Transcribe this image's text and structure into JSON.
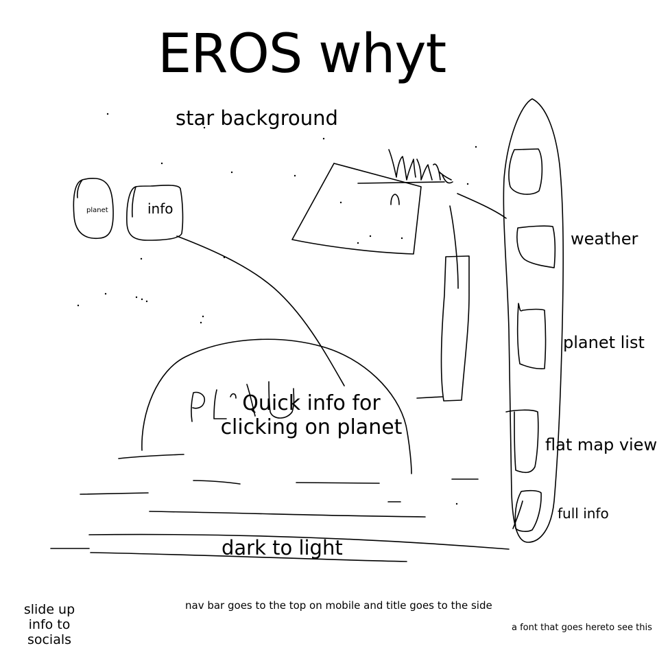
{
  "title": "EROS whyt",
  "notes": {
    "star_background": "star background",
    "planet_button": "planet",
    "info_button": "info",
    "quick_info": "Quick info for clicking on planet",
    "dark_to_light": "dark to light",
    "slide_up_info": "slide up info to socials",
    "nav_bar_note": "nav bar goes to the top on mobile and title goes to the side",
    "font_note": "a font that goes hereto see this"
  },
  "sidebar": {
    "items": [
      {
        "label": "weather"
      },
      {
        "label": "planet list"
      },
      {
        "label": "flat map view"
      },
      {
        "label": "full info"
      }
    ]
  },
  "colors": {
    "ink": "#000000",
    "paper": "#ffffff"
  }
}
